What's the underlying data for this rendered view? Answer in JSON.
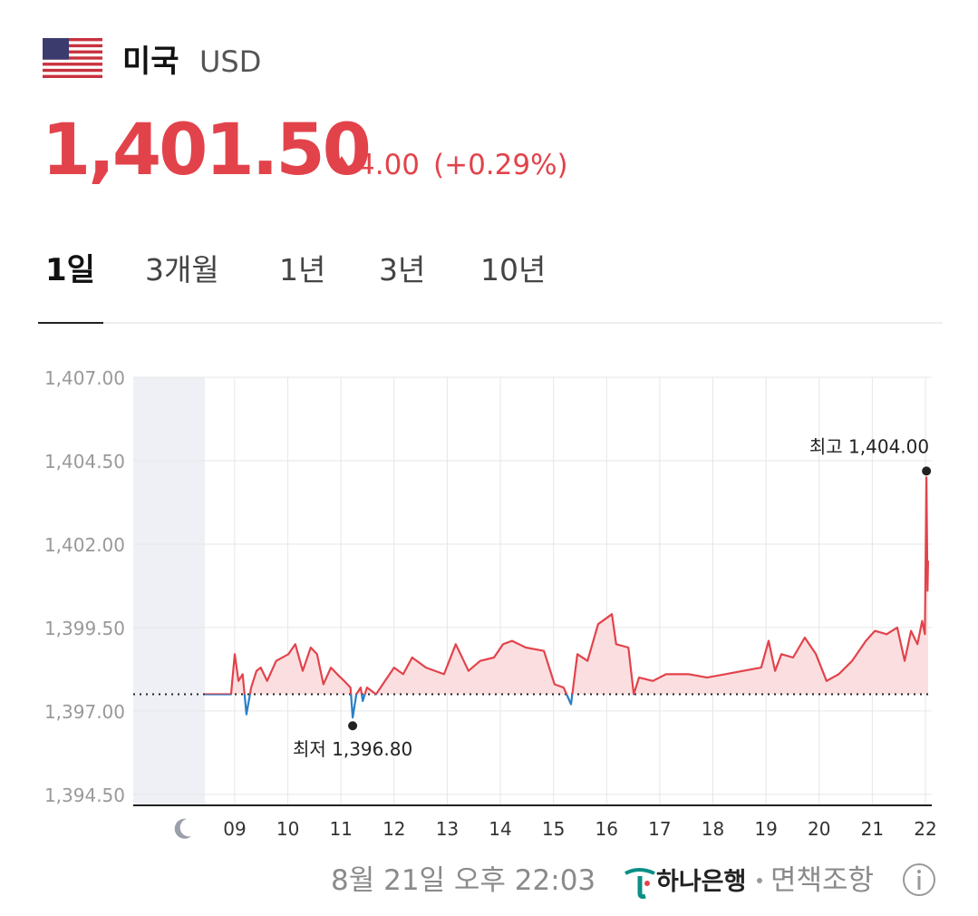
{
  "header": {
    "country": "미국",
    "currency": "USD",
    "price": "1,401.50",
    "change": "4.00",
    "change_pct": "(+0.29%)"
  },
  "tabs": [
    "1일",
    "3개월",
    "1년",
    "3년",
    "10년"
  ],
  "chart_data": {
    "type": "line",
    "x": [
      8.44,
      8.93,
      9.0,
      9.07,
      9.15,
      9.22,
      9.31,
      9.41,
      9.49,
      9.61,
      9.78,
      10.01,
      10.14,
      10.28,
      10.43,
      10.55,
      10.67,
      10.81,
      10.93,
      11.06,
      11.18,
      11.22,
      11.29,
      11.37,
      11.41,
      11.49,
      11.66,
      11.83,
      12.0,
      12.17,
      12.34,
      12.6,
      12.94,
      13.16,
      13.4,
      13.62,
      13.88,
      14.05,
      14.22,
      14.48,
      14.82,
      15.02,
      15.19,
      15.33,
      15.45,
      15.64,
      15.84,
      16.1,
      16.18,
      16.41,
      16.51,
      16.61,
      16.87,
      17.12,
      17.55,
      17.89,
      18.23,
      18.57,
      18.91,
      19.05,
      19.17,
      19.29,
      19.51,
      19.73,
      19.94,
      20.14,
      20.37,
      20.62,
      20.88,
      21.05,
      21.27,
      21.47,
      21.61,
      21.73,
      21.85,
      21.94,
      21.99,
      22.02,
      22.04,
      22.05
    ],
    "values": [
      1397.5,
      1397.5,
      1398.7,
      1397.9,
      1398.1,
      1396.9,
      1397.7,
      1398.2,
      1398.3,
      1397.9,
      1398.5,
      1398.7,
      1399.0,
      1398.2,
      1398.9,
      1398.7,
      1397.8,
      1398.3,
      1398.1,
      1397.9,
      1397.7,
      1396.8,
      1397.5,
      1397.7,
      1397.3,
      1397.7,
      1397.5,
      1397.9,
      1398.3,
      1398.1,
      1398.6,
      1398.3,
      1398.1,
      1399.0,
      1398.2,
      1398.5,
      1398.6,
      1399.0,
      1399.1,
      1398.9,
      1398.8,
      1397.8,
      1397.7,
      1397.2,
      1398.7,
      1398.5,
      1399.6,
      1399.9,
      1399.0,
      1398.9,
      1397.5,
      1398.0,
      1397.9,
      1398.1,
      1398.1,
      1398.0,
      1398.1,
      1398.2,
      1398.3,
      1399.1,
      1398.2,
      1398.7,
      1398.6,
      1399.2,
      1398.7,
      1397.9,
      1398.1,
      1398.5,
      1399.1,
      1399.4,
      1399.3,
      1399.5,
      1398.5,
      1399.4,
      1399.0,
      1399.7,
      1399.3,
      1404.0,
      1400.6,
      1401.5
    ],
    "color": "#e2434b",
    "down_color": "#2a7fc4",
    "fill_color": "#fbdfe0",
    "baseline": 1397.5,
    "shaded_xrange": [
      7.09,
      8.44
    ],
    "xlim": [
      7.09,
      22.12
    ],
    "ylim": [
      1394.17,
      1407.0
    ],
    "xticks": [
      {
        "value": 9,
        "label": "09"
      },
      10,
      11,
      12,
      13,
      14,
      15,
      16,
      17,
      18,
      19,
      20,
      21,
      22
    ],
    "yticks": [
      {
        "value": 1394.5,
        "label": "1,394.50"
      },
      {
        "value": 1397,
        "label": "1,397.00"
      },
      {
        "value": 1399.5,
        "label": "1,399.50"
      },
      {
        "value": 1402,
        "label": "1,402.00"
      },
      {
        "value": 1404.5,
        "label": "1,404.50"
      },
      {
        "value": 1407,
        "label": "1,407.00"
      }
    ],
    "grid": true,
    "annotations": [
      {
        "text": "최고 1,404.00",
        "x": 22.02,
        "y": 1404.0
      },
      {
        "text": "최저 1,396.80",
        "x": 11.22,
        "y": 1396.8
      }
    ]
  },
  "footer": {
    "timestamp": "8월 21일 오후 22:03",
    "bank": "하나은행",
    "disclaimer": "면책조항"
  }
}
